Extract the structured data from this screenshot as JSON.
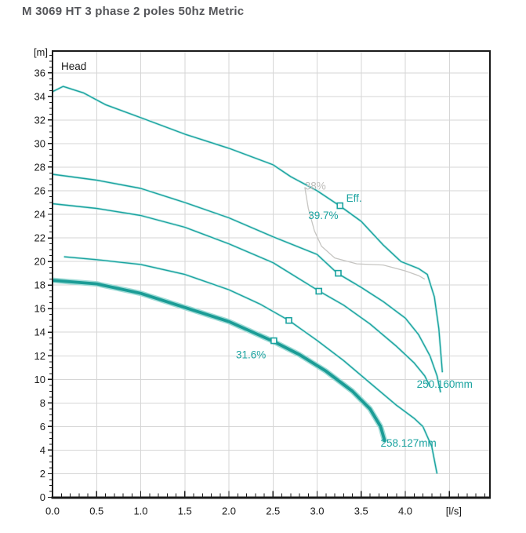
{
  "page": {
    "title": "M 3069 HT 3 phase 2 poles 50hz Metric"
  },
  "chart_data": {
    "type": "line",
    "title": "M 3069 HT 3 phase 2 poles 50hz Metric",
    "inner_label": "Head",
    "xlabel": "[l/s]",
    "ylabel": "[m]",
    "xlim": [
      0,
      4.95
    ],
    "ylim": [
      0,
      37.9
    ],
    "grid": true,
    "x_tick_labels": [
      "0.0",
      "0.5",
      "1.0",
      "1.5",
      "2.0",
      "2.5",
      "3.0",
      "3.5",
      "4.0"
    ],
    "x_tick_values": [
      0,
      0.5,
      1.0,
      1.5,
      2.0,
      2.5,
      3.0,
      3.5,
      4.0
    ],
    "x_unit_position": 4.55,
    "x_grid_step": 0.5,
    "x_minor_step": 0.1,
    "y_tick_labels": [
      "0",
      "2",
      "4",
      "6",
      "8",
      "10",
      "12",
      "14",
      "16",
      "18",
      "20",
      "22",
      "24",
      "26",
      "28",
      "30",
      "32",
      "34",
      "36"
    ],
    "y_tick_values": [
      0,
      2,
      4,
      6,
      8,
      10,
      12,
      14,
      16,
      18,
      20,
      22,
      24,
      26,
      28,
      30,
      32,
      34,
      36
    ],
    "y_grid_step": 2,
    "y_minor_step": 0.5,
    "series": [
      {
        "name": "head-curve-1-largest-impeller",
        "role": "head",
        "weight": "thin",
        "values": [
          [
            0,
            34.4
          ],
          [
            0.12,
            34.85
          ],
          [
            0.35,
            34.3
          ],
          [
            0.6,
            33.3
          ],
          [
            1.0,
            32.2
          ],
          [
            1.5,
            30.8
          ],
          [
            2.0,
            29.6
          ],
          [
            2.5,
            28.2
          ],
          [
            2.7,
            27.2
          ],
          [
            3.0,
            26.0
          ],
          [
            3.26,
            24.7
          ],
          [
            3.5,
            23.4
          ],
          [
            3.75,
            21.4
          ],
          [
            3.95,
            20.0
          ],
          [
            4.15,
            19.4
          ],
          [
            4.25,
            18.9
          ],
          [
            4.33,
            17.0
          ],
          [
            4.38,
            14.3
          ],
          [
            4.42,
            10.6
          ]
        ]
      },
      {
        "name": "head-curve-2",
        "role": "head",
        "weight": "thin",
        "values": [
          [
            0,
            27.4
          ],
          [
            0.5,
            26.9
          ],
          [
            1.0,
            26.2
          ],
          [
            1.5,
            25.0
          ],
          [
            2.0,
            23.7
          ],
          [
            2.5,
            22.1
          ],
          [
            3.0,
            20.6
          ],
          [
            3.23,
            19.0
          ],
          [
            3.5,
            17.8
          ],
          [
            3.75,
            16.6
          ],
          [
            4.0,
            15.2
          ],
          [
            4.15,
            13.8
          ],
          [
            4.28,
            12.0
          ],
          [
            4.36,
            10.3
          ],
          [
            4.4,
            8.9
          ]
        ]
      },
      {
        "name": "head-curve-3",
        "role": "head",
        "weight": "thin",
        "values": [
          [
            0,
            24.9
          ],
          [
            0.5,
            24.5
          ],
          [
            1.0,
            23.9
          ],
          [
            1.5,
            22.9
          ],
          [
            2.0,
            21.5
          ],
          [
            2.5,
            19.9
          ],
          [
            3.02,
            17.5
          ],
          [
            3.3,
            16.3
          ],
          [
            3.6,
            14.7
          ],
          [
            3.9,
            12.8
          ],
          [
            4.1,
            11.4
          ],
          [
            4.22,
            10.3
          ],
          [
            4.28,
            9.4
          ]
        ]
      },
      {
        "name": "head-curve-4",
        "role": "head",
        "weight": "thin",
        "values": [
          [
            0.13,
            20.4
          ],
          [
            0.5,
            20.15
          ],
          [
            1.0,
            19.75
          ],
          [
            1.5,
            18.9
          ],
          [
            2.0,
            17.6
          ],
          [
            2.35,
            16.4
          ],
          [
            2.68,
            15.0
          ],
          [
            3.0,
            13.3
          ],
          [
            3.3,
            11.6
          ],
          [
            3.6,
            9.7
          ],
          [
            3.9,
            7.8
          ],
          [
            4.1,
            6.7
          ],
          [
            4.2,
            6.0
          ],
          [
            4.3,
            4.3
          ],
          [
            4.36,
            2.0
          ]
        ]
      },
      {
        "name": "head-curve-5-selected-bold",
        "role": "head",
        "weight": "bold",
        "values": [
          [
            0,
            18.4
          ],
          [
            0.5,
            18.1
          ],
          [
            1.0,
            17.3
          ],
          [
            1.5,
            16.1
          ],
          [
            2.0,
            14.9
          ],
          [
            2.51,
            13.2
          ],
          [
            2.8,
            12.1
          ],
          [
            3.1,
            10.7
          ],
          [
            3.4,
            9.0
          ],
          [
            3.6,
            7.5
          ],
          [
            3.72,
            6.0
          ],
          [
            3.77,
            4.7
          ]
        ]
      },
      {
        "name": "efficiency-contour-38pct",
        "role": "efficiency",
        "weight": "thin",
        "values": [
          [
            2.86,
            26.3
          ],
          [
            2.9,
            24.5
          ],
          [
            2.97,
            22.6
          ],
          [
            3.05,
            21.3
          ],
          [
            3.2,
            20.3
          ],
          [
            3.45,
            19.8
          ],
          [
            3.75,
            19.7
          ],
          [
            4.0,
            19.2
          ],
          [
            4.15,
            18.8
          ],
          [
            4.22,
            18.5
          ]
        ]
      }
    ],
    "bep_markers": [
      {
        "x": 3.26,
        "y": 24.73
      },
      {
        "x": 3.24,
        "y": 19.0
      },
      {
        "x": 3.02,
        "y": 17.48
      },
      {
        "x": 2.68,
        "y": 15.0
      },
      {
        "x": 2.51,
        "y": 13.28
      }
    ],
    "annotations": [
      {
        "text": "38%",
        "x": 2.86,
        "y": 26.1,
        "color": "gray"
      },
      {
        "text": "Eff.",
        "x": 3.33,
        "y": 25.05,
        "color": "teal"
      },
      {
        "text": "39.7%",
        "x": 2.9,
        "y": 23.6,
        "color": "teal"
      },
      {
        "text": "31.6%",
        "x": 2.08,
        "y": 11.8,
        "color": "teal"
      },
      {
        "text": "250.160mm",
        "x": 4.13,
        "y": 9.3,
        "color": "teal"
      },
      {
        "text": "258.127mm",
        "x": 3.72,
        "y": 4.3,
        "color": "teal"
      }
    ],
    "colors": {
      "teal": "#1ba3a0",
      "teal_bold": "#1b9c96",
      "teal_halo": "#bfe9e6",
      "teal_halo_bold": "#9fdbd6",
      "gray_curve": "#c6c5c2",
      "gray_text": "#bdbcb9",
      "grid": "#d6d6d6",
      "axis": "#1a1a1a",
      "tick_text": "#1a1a1a",
      "title_text": "#55565a",
      "marker_fill": "#f4fbfa"
    }
  }
}
